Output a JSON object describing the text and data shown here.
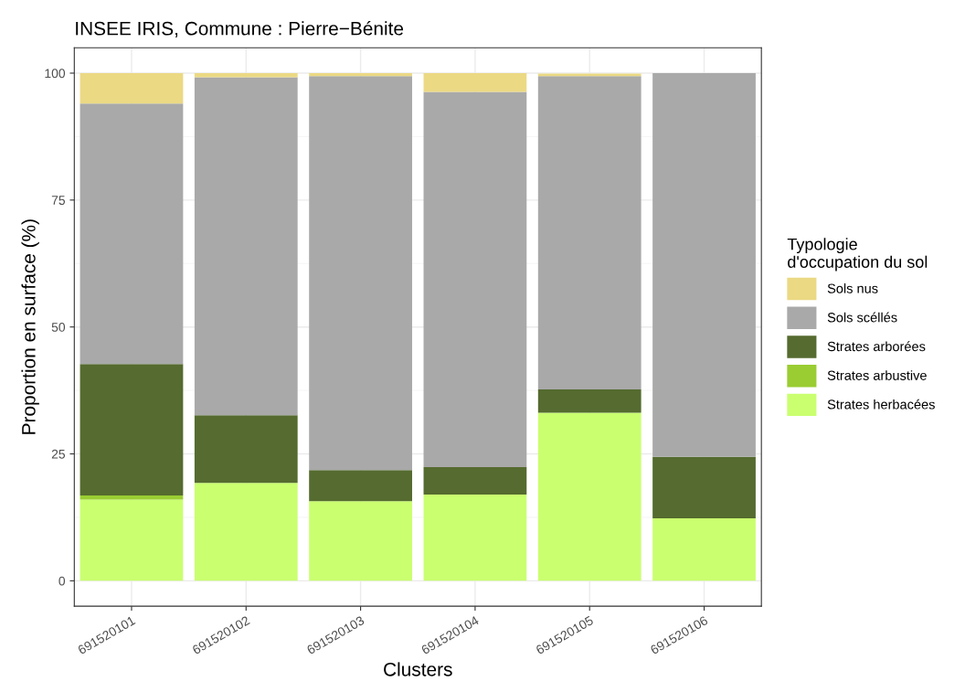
{
  "chart_data": {
    "type": "bar",
    "stacked": true,
    "title": "INSEE IRIS, Commune : Pierre−Bénite",
    "xlabel": "Clusters",
    "ylabel": "Proportion en surface (%)",
    "legend_title": "Typologie\nd'occupation du sol",
    "legend": "right",
    "categories": [
      "691520101",
      "691520102",
      "691520103",
      "691520104",
      "691520105",
      "691520106"
    ],
    "series": [
      {
        "name": "Strates herbacées",
        "color": "#caff70",
        "values": [
          16.0,
          19.3,
          15.7,
          17.0,
          33.1,
          12.3
        ]
      },
      {
        "name": "Strates arbustive",
        "color": "#9acd32",
        "values": [
          0.8,
          0,
          0,
          0,
          null,
          0
        ]
      },
      {
        "name": "Strates arborées",
        "color": "#556b2f",
        "values": [
          25.9,
          13.3,
          6.1,
          5.4,
          4.6,
          12.1
        ]
      },
      {
        "name": "Sols scéllés",
        "color": "#a9a9a9",
        "values": [
          51.3,
          66.6,
          77.6,
          73.9,
          61.7,
          75.6
        ]
      },
      {
        "name": "Sols nus",
        "color": "#ebd984",
        "values": [
          6.0,
          0.8,
          0.6,
          3.7,
          0.5,
          0
        ]
      }
    ],
    "ylim": [
      -5,
      105
    ],
    "yticks": [
      0,
      25,
      50,
      75,
      100
    ],
    "grid": true
  }
}
